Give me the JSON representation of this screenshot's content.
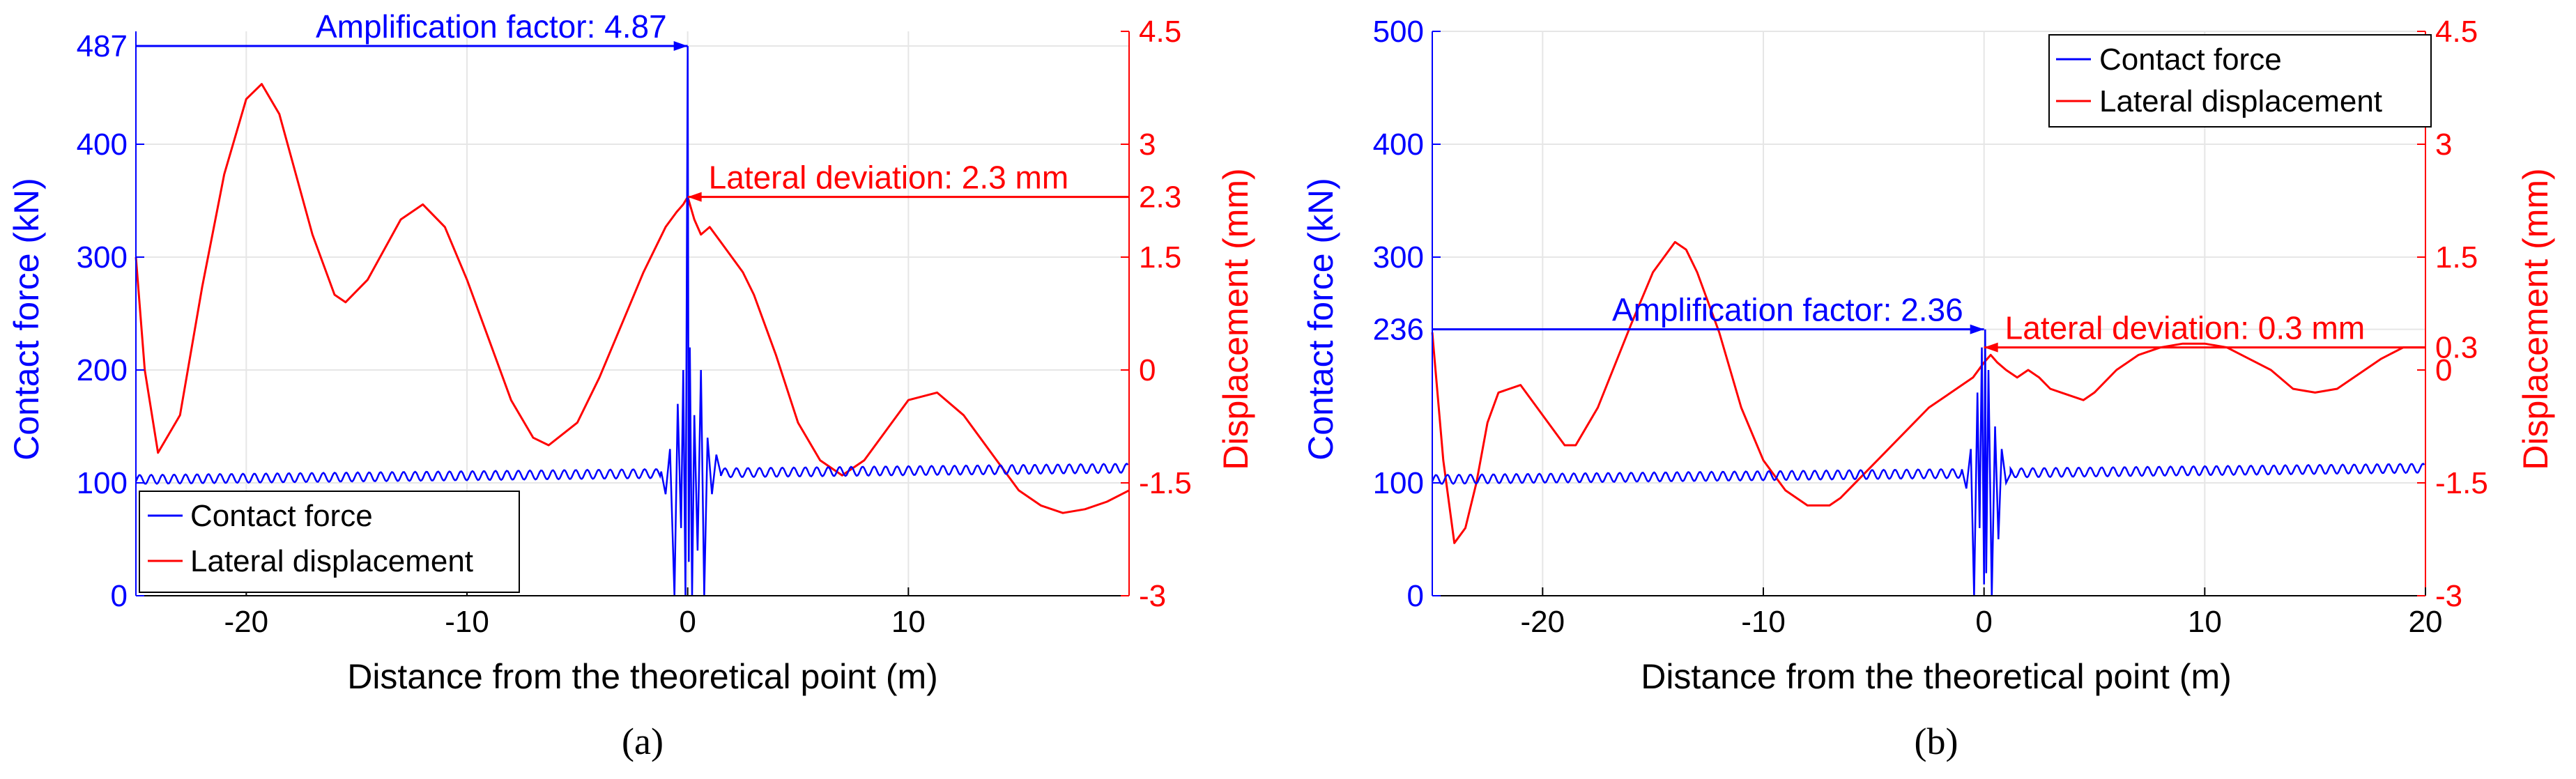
{
  "colors": {
    "force": "#0000FF",
    "displacement": "#FF0000",
    "axis": "#000000",
    "grid": "#e6e6e6"
  },
  "chart_data": [
    {
      "type": "line",
      "panel_label": "(a)",
      "xlabel": "Distance from the theoretical point (m)",
      "ylabel_left": "Contact force (kN)",
      "ylabel_right": "Displacement (mm)",
      "xlim": [
        -25,
        20
      ],
      "ylim_left": [
        0,
        500
      ],
      "ylim_right": [
        -3,
        4.5
      ],
      "xticks": [
        -20,
        -10,
        0,
        10
      ],
      "xtick_labels": [
        "-20",
        "-10",
        "0",
        "10"
      ],
      "yticks_left": [
        0,
        100,
        200,
        300,
        400,
        487
      ],
      "ytick_labels_left": [
        "0",
        "100",
        "200",
        "300",
        "400",
        "487"
      ],
      "yticks_right": [
        -3,
        -1.5,
        0,
        1.5,
        2.3,
        3,
        4.5
      ],
      "ytick_labels_right": [
        "-3",
        "-1.5",
        "0",
        "1.5",
        "2.3",
        "3",
        "4.5"
      ],
      "legend": {
        "position": "bottom-left",
        "entries": [
          "Contact force",
          "Lateral displacement"
        ]
      },
      "annotations": [
        {
          "text": "Amplification factor: 4.87",
          "color": "force",
          "axis": "left",
          "y": 487,
          "x_from": -25,
          "x_to": 0
        },
        {
          "text": "Lateral deviation: 2.3 mm",
          "color": "displacement",
          "axis": "right",
          "y": 2.3,
          "x_from": 0,
          "x_to": 20
        }
      ],
      "series": [
        {
          "name": "Lateral displacement",
          "axis": "right",
          "x": [
            -25,
            -24.6,
            -24,
            -23,
            -22,
            -21,
            -20,
            -19.3,
            -18.5,
            -17,
            -16,
            -15.5,
            -14.5,
            -13,
            -12,
            -11,
            -10,
            -9,
            -8,
            -7,
            -6.3,
            -5,
            -4,
            -3,
            -2,
            -1,
            -0.5,
            -0.2,
            0,
            0.3,
            0.6,
            1,
            1.5,
            2,
            2.5,
            3,
            3.5,
            4,
            5,
            6,
            7,
            8,
            9,
            10,
            11.3,
            12.5,
            14,
            15,
            16,
            17,
            18,
            19,
            20
          ],
          "y": [
            1.5,
            0,
            -1.1,
            -0.6,
            1.1,
            2.6,
            3.6,
            3.8,
            3.4,
            1.8,
            1.0,
            0.9,
            1.2,
            2.0,
            2.2,
            1.9,
            1.2,
            0.4,
            -0.4,
            -0.9,
            -1.0,
            -0.7,
            -0.1,
            0.6,
            1.3,
            1.9,
            2.1,
            2.2,
            2.3,
            2.0,
            1.8,
            1.9,
            1.7,
            1.5,
            1.3,
            1.0,
            0.6,
            0.2,
            -0.7,
            -1.2,
            -1.4,
            -1.2,
            -0.8,
            -0.4,
            -0.3,
            -0.6,
            -1.2,
            -1.6,
            -1.8,
            -1.9,
            -1.85,
            -1.75,
            -1.6
          ]
        },
        {
          "name": "Contact force",
          "axis": "left",
          "baseline": {
            "x": [
              -25,
              20
            ],
            "y": [
              103,
              113
            ],
            "amplitude": 4,
            "wavelength": 0.52
          },
          "x": [
            -1.2,
            -1.0,
            -0.8,
            -0.6,
            -0.45,
            -0.3,
            -0.2,
            -0.1,
            0,
            0.05,
            0.1,
            0.2,
            0.3,
            0.45,
            0.6,
            0.75,
            0.9,
            1.1,
            1.3,
            1.5
          ],
          "y": [
            110,
            90,
            130,
            0,
            170,
            60,
            200,
            0,
            487,
            30,
            220,
            0,
            160,
            40,
            200,
            0,
            140,
            90,
            125,
            108
          ]
        }
      ]
    },
    {
      "type": "line",
      "panel_label": "(b)",
      "xlabel": "Distance from the theoretical point (m)",
      "ylabel_left": "Contact force (kN)",
      "ylabel_right": "Displacement (mm)",
      "xlim": [
        -25,
        20
      ],
      "ylim_left": [
        0,
        500
      ],
      "ylim_right": [
        -3,
        4.5
      ],
      "xticks": [
        -20,
        -10,
        0,
        10,
        20
      ],
      "xtick_labels": [
        "-20",
        "-10",
        "0",
        "10",
        "20"
      ],
      "yticks_left": [
        0,
        100,
        236,
        300,
        400,
        500
      ],
      "ytick_labels_left": [
        "0",
        "100",
        "236",
        "300",
        "400",
        "500"
      ],
      "yticks_right": [
        -3,
        -1.5,
        0,
        0.3,
        1.5,
        3,
        4.5
      ],
      "ytick_labels_right": [
        "-3",
        "-1.5",
        "0",
        "0.3",
        "1.5",
        "3",
        "4.5"
      ],
      "legend": {
        "position": "top-right",
        "entries": [
          "Contact force",
          "Lateral displacement"
        ]
      },
      "annotations": [
        {
          "text": "Amplification factor: 2.36",
          "color": "force",
          "axis": "left",
          "y": 236,
          "x_from": -25,
          "x_to": 0
        },
        {
          "text": "Lateral deviation: 0.3 mm",
          "color": "displacement",
          "axis": "right",
          "y": 0.3,
          "x_from": 0,
          "x_to": 20
        }
      ],
      "series": [
        {
          "name": "Lateral displacement",
          "axis": "right",
          "x": [
            -25,
            -24.5,
            -24,
            -23.5,
            -23,
            -22.5,
            -22,
            -21,
            -20,
            -19,
            -18.5,
            -17.5,
            -16,
            -15,
            -14,
            -13.5,
            -13,
            -12,
            -11,
            -10,
            -9,
            -8,
            -7,
            -6.5,
            -5.5,
            -4.5,
            -3.5,
            -2.5,
            -1.5,
            -0.5,
            0,
            0.3,
            0.6,
            1,
            1.5,
            2,
            2.5,
            3,
            3.5,
            4,
            4.5,
            5,
            6,
            7,
            8,
            9,
            10,
            11,
            12,
            13,
            14,
            15,
            16,
            17,
            18,
            19,
            20
          ],
          "y": [
            0.5,
            -1.2,
            -2.3,
            -2.1,
            -1.5,
            -0.7,
            -0.3,
            -0.2,
            -0.6,
            -1.0,
            -1.0,
            -0.5,
            0.6,
            1.3,
            1.7,
            1.6,
            1.3,
            0.5,
            -0.5,
            -1.2,
            -1.6,
            -1.8,
            -1.8,
            -1.7,
            -1.4,
            -1.1,
            -0.8,
            -0.5,
            -0.3,
            -0.1,
            0.1,
            0.2,
            0.1,
            0.0,
            -0.1,
            0.0,
            -0.1,
            -0.25,
            -0.3,
            -0.35,
            -0.4,
            -0.3,
            0.0,
            0.2,
            0.3,
            0.35,
            0.35,
            0.3,
            0.15,
            0.0,
            -0.25,
            -0.3,
            -0.25,
            -0.05,
            0.15,
            0.3,
            0.3
          ]
        },
        {
          "name": "Contact force",
          "axis": "left",
          "baseline": {
            "x": [
              -25,
              20
            ],
            "y": [
              103,
              113
            ],
            "amplitude": 4,
            "wavelength": 0.52
          },
          "x": [
            -1.0,
            -0.8,
            -0.6,
            -0.45,
            -0.3,
            -0.2,
            -0.1,
            0,
            0.05,
            0.1,
            0.2,
            0.35,
            0.5,
            0.65,
            0.8,
            1.0,
            1.2
          ],
          "y": [
            112,
            95,
            130,
            0,
            180,
            60,
            220,
            10,
            236,
            20,
            200,
            0,
            150,
            50,
            130,
            100,
            108
          ]
        }
      ]
    }
  ]
}
